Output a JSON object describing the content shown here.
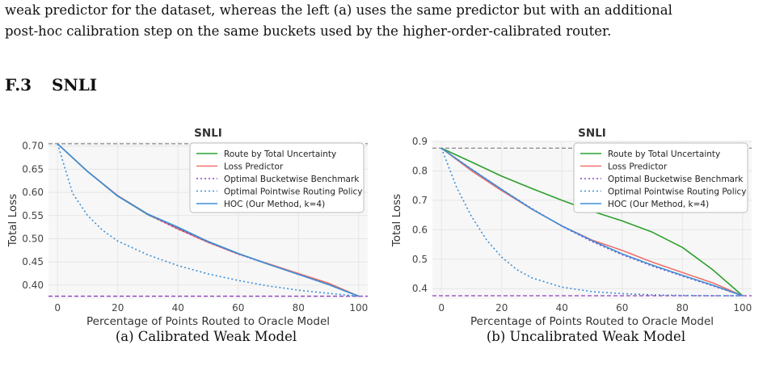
{
  "text": {
    "line1": "weak predictor for the dataset, whereas the left (a) uses the same predictor but with an additional",
    "line2": "post-hoc calibration step on the same buckets used by the higher-order-calibrated router."
  },
  "section": {
    "number": "F.3",
    "title": "SNLI"
  },
  "colors": {
    "total_uncertainty": "#2ca02c",
    "loss_predictor": "#f0706a",
    "bucketwise": "#8e3fbf",
    "pointwise": "#3a8fd9",
    "hoc": "#3a8fd9",
    "ref_dashed": "#888888"
  },
  "figures": [
    {
      "caption": "(a) Calibrated Weak Model",
      "chart_data": {
        "type": "line",
        "title": "SNLI",
        "xlabel": "Percentage of Points Routed to Oracle Model",
        "ylabel": "Total Loss",
        "xlim": [
          -3,
          103
        ],
        "ylim": [
          0.37,
          0.71
        ],
        "xticks": [
          0,
          20,
          40,
          60,
          80,
          100
        ],
        "yticks": [
          0.4,
          0.45,
          0.5,
          0.55,
          0.6,
          0.65,
          0.7
        ],
        "ytick_labels": [
          "0.40",
          "0.45",
          "0.50",
          "0.55",
          "0.60",
          "0.65",
          "0.70"
        ],
        "grid": true,
        "legend_position": "top-right",
        "hlines": [
          {
            "y": 0.705,
            "style": "dashed",
            "color": "#888888"
          },
          {
            "y": 0.376,
            "style": "dashed",
            "color": "#8e3fbf"
          }
        ],
        "series": [
          {
            "name": "Route by Total Uncertainty",
            "style": "solid",
            "color": "#2ca02c",
            "x": [
              0,
              10,
              20,
              30,
              40,
              50,
              60,
              70,
              80,
              90,
              100
            ],
            "y": [
              0.705,
              0.645,
              0.592,
              0.552,
              0.522,
              0.494,
              0.468,
              0.445,
              0.424,
              0.402,
              0.376
            ]
          },
          {
            "name": "Loss Predictor",
            "style": "solid",
            "color": "#f0706a",
            "x": [
              0,
              10,
              20,
              30,
              40,
              50,
              60,
              70,
              80,
              90,
              100
            ],
            "y": [
              0.705,
              0.645,
              0.593,
              0.553,
              0.521,
              0.492,
              0.467,
              0.446,
              0.425,
              0.404,
              0.376
            ]
          },
          {
            "name": "Optimal Bucketwise Benchmark",
            "style": "dotted",
            "color": "#8e3fbf",
            "x": [
              0,
              10,
              20,
              30,
              40,
              50,
              60,
              70,
              80,
              90,
              100
            ],
            "y": [
              0.705,
              0.645,
              0.592,
              0.552,
              0.521,
              0.493,
              0.467,
              0.445,
              0.423,
              0.401,
              0.376
            ]
          },
          {
            "name": "Optimal Pointwise Routing Policy",
            "style": "dotted",
            "color": "#3a8fd9",
            "x": [
              0,
              5,
              10,
              15,
              20,
              30,
              40,
              50,
              60,
              70,
              80,
              90,
              100
            ],
            "y": [
              0.705,
              0.598,
              0.55,
              0.518,
              0.495,
              0.465,
              0.442,
              0.424,
              0.41,
              0.398,
              0.389,
              0.382,
              0.376
            ]
          },
          {
            "name": "HOC (Our Method, k=4)",
            "style": "solid",
            "color": "#3a8fd9",
            "x": [
              0,
              10,
              20,
              30,
              40,
              50,
              60,
              70,
              80,
              90,
              100
            ],
            "y": [
              0.705,
              0.645,
              0.592,
              0.553,
              0.525,
              0.494,
              0.468,
              0.445,
              0.423,
              0.401,
              0.376
            ]
          }
        ]
      }
    },
    {
      "caption": "(b) Uncalibrated Weak Model",
      "chart_data": {
        "type": "line",
        "title": "SNLI",
        "xlabel": "Percentage of Points Routed to Oracle Model",
        "ylabel": "Total Loss",
        "xlim": [
          -3,
          103
        ],
        "ylim": [
          0.365,
          0.9
        ],
        "xticks": [
          0,
          20,
          40,
          60,
          80,
          100
        ],
        "yticks": [
          0.4,
          0.5,
          0.6,
          0.7,
          0.8,
          0.9
        ],
        "ytick_labels": [
          "0.4",
          "0.5",
          "0.6",
          "0.7",
          "0.8",
          "0.9"
        ],
        "grid": true,
        "legend_position": "top-right",
        "hlines": [
          {
            "y": 0.877,
            "style": "dashed",
            "color": "#888888"
          },
          {
            "y": 0.376,
            "style": "dashed",
            "color": "#8e3fbf"
          }
        ],
        "series": [
          {
            "name": "Route by Total Uncertainty",
            "style": "solid",
            "color": "#2ca02c",
            "x": [
              0,
              10,
              20,
              30,
              40,
              50,
              60,
              70,
              80,
              90,
              100
            ],
            "y": [
              0.877,
              0.83,
              0.782,
              0.74,
              0.7,
              0.663,
              0.63,
              0.592,
              0.54,
              0.465,
              0.376
            ]
          },
          {
            "name": "Loss Predictor",
            "style": "solid",
            "color": "#f0706a",
            "x": [
              0,
              10,
              20,
              30,
              40,
              50,
              60,
              70,
              80,
              90,
              100
            ],
            "y": [
              0.877,
              0.8,
              0.733,
              0.67,
              0.613,
              0.565,
              0.53,
              0.49,
              0.455,
              0.42,
              0.376
            ]
          },
          {
            "name": "Optimal Bucketwise Benchmark",
            "style": "dotted",
            "color": "#8e3fbf",
            "x": [
              0,
              10,
              20,
              30,
              40,
              50,
              60,
              70,
              80,
              90,
              100
            ],
            "y": [
              0.877,
              0.806,
              0.737,
              0.672,
              0.612,
              0.56,
              0.515,
              0.477,
              0.443,
              0.41,
              0.376
            ]
          },
          {
            "name": "Optimal Pointwise Routing Policy",
            "style": "dotted",
            "color": "#3a8fd9",
            "x": [
              0,
              5,
              10,
              15,
              20,
              25,
              30,
              40,
              50,
              60,
              70,
              80,
              90,
              100
            ],
            "y": [
              0.877,
              0.745,
              0.645,
              0.565,
              0.507,
              0.465,
              0.437,
              0.405,
              0.39,
              0.383,
              0.379,
              0.377,
              0.376,
              0.376
            ]
          },
          {
            "name": "HOC (Our Method, k=4)",
            "style": "solid",
            "color": "#3a8fd9",
            "x": [
              0,
              10,
              20,
              30,
              40,
              50,
              60,
              70,
              80,
              90,
              100
            ],
            "y": [
              0.877,
              0.805,
              0.737,
              0.67,
              0.613,
              0.563,
              0.518,
              0.48,
              0.445,
              0.412,
              0.376
            ]
          }
        ]
      }
    }
  ]
}
